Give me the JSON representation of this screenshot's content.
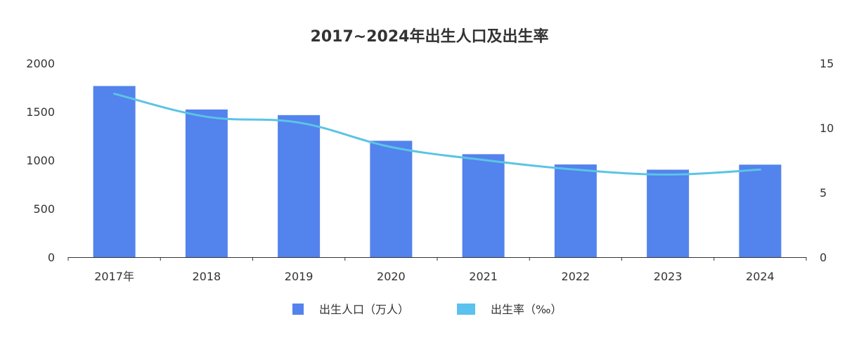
{
  "chart_data": {
    "type": "bar",
    "title": "2017~2024年出生人口及出生率",
    "categories": [
      "2017年",
      "2018",
      "2019",
      "2020",
      "2021",
      "2022",
      "2023",
      "2024"
    ],
    "series": [
      {
        "name": "出生人口（万人）",
        "type": "bar",
        "axis": "left",
        "color": "#5383EC",
        "values": [
          1765,
          1523,
          1465,
          1200,
          1062,
          956,
          902,
          954
        ]
      },
      {
        "name": "出生率（‰）",
        "type": "line",
        "axis": "right",
        "color": "#5BC4E4",
        "legend_color": "#5BC1EF",
        "values": [
          12.64,
          10.86,
          10.41,
          8.52,
          7.52,
          6.77,
          6.39,
          6.77
        ]
      }
    ],
    "y_left": {
      "min": 0,
      "max": 2000,
      "ticks": [
        0,
        500,
        1000,
        1500,
        2000
      ]
    },
    "y_right": {
      "min": 0,
      "max": 15,
      "ticks": [
        0,
        5,
        10,
        15
      ]
    },
    "grid": false,
    "legend_position": "bottom"
  }
}
